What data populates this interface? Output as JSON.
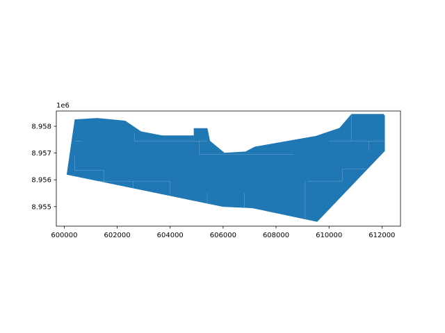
{
  "chart_data": {
    "type": "polygon",
    "title": "",
    "xlabel": "",
    "ylabel": "",
    "y_offset_label": "1e6",
    "xlim": [
      599700,
      612700
    ],
    "ylim": [
      8954270,
      8958570
    ],
    "fill_color": "#1f77b4",
    "edge_color": "#d8e6f3",
    "x_ticks": [
      {
        "value": 600000,
        "label": "600000"
      },
      {
        "value": 602000,
        "label": "602000"
      },
      {
        "value": 604000,
        "label": "604000"
      },
      {
        "value": 606000,
        "label": "606000"
      },
      {
        "value": 608000,
        "label": "608000"
      },
      {
        "value": 610000,
        "label": "610000"
      },
      {
        "value": 612000,
        "label": "612000"
      }
    ],
    "y_ticks": [
      {
        "value": 8955000,
        "label": "8.955"
      },
      {
        "value": 8956000,
        "label": "8.956"
      },
      {
        "value": 8957000,
        "label": "8.957"
      },
      {
        "value": 8958000,
        "label": "8.958"
      }
    ],
    "outline": [
      [
        600100,
        8956200
      ],
      [
        600400,
        8958250
      ],
      [
        601250,
        8958300
      ],
      [
        602300,
        8958200
      ],
      [
        602900,
        8957800
      ],
      [
        603700,
        8957650
      ],
      [
        604900,
        8957650
      ],
      [
        604900,
        8957920
      ],
      [
        605400,
        8957920
      ],
      [
        605500,
        8957450
      ],
      [
        606050,
        8957000
      ],
      [
        606850,
        8957050
      ],
      [
        607200,
        8957230
      ],
      [
        609500,
        8957630
      ],
      [
        610400,
        8957930
      ],
      [
        610850,
        8958450
      ],
      [
        612050,
        8958450
      ],
      [
        612100,
        8958400
      ],
      [
        612100,
        8957080
      ],
      [
        609550,
        8954440
      ],
      [
        607100,
        8954950
      ],
      [
        606000,
        8955000
      ]
    ],
    "internal_lines": [
      [
        [
          600400,
          8957450
        ],
        [
          600650,
          8957450
        ]
      ],
      [
        [
          600400,
          8956350
        ],
        [
          601500,
          8956350
        ]
      ],
      [
        [
          601500,
          8956350
        ],
        [
          601500,
          8955900
        ]
      ],
      [
        [
          602650,
          8957450
        ],
        [
          602650,
          8957750
        ]
      ],
      [
        [
          602650,
          8957450
        ],
        [
          604900,
          8957450
        ]
      ],
      [
        [
          604900,
          8957450
        ],
        [
          605400,
          8957450
        ]
      ],
      [
        [
          605100,
          8957450
        ],
        [
          605100,
          8956950
        ]
      ],
      [
        [
          605100,
          8956950
        ],
        [
          608650,
          8956950
        ]
      ],
      [
        [
          604000,
          8955950
        ],
        [
          604000,
          8955450
        ]
      ],
      [
        [
          601200,
          8955950
        ],
        [
          604000,
          8955950
        ]
      ],
      [
        [
          610000,
          8957450
        ],
        [
          611200,
          8957450
        ]
      ],
      [
        [
          610850,
          8957450
        ],
        [
          610850,
          8958450
        ]
      ],
      [
        [
          611200,
          8957450
        ],
        [
          612100,
          8957450
        ]
      ],
      [
        [
          611500,
          8957450
        ],
        [
          611500,
          8957080
        ]
      ],
      [
        [
          610500,
          8956400
        ],
        [
          611400,
          8956400
        ]
      ],
      [
        [
          609200,
          8955950
        ],
        [
          610500,
          8955950
        ]
      ],
      [
        [
          610500,
          8956400
        ],
        [
          610500,
          8955950
        ]
      ],
      [
        [
          609100,
          8955950
        ],
        [
          609100,
          8954550
        ]
      ],
      [
        [
          606800,
          8955500
        ],
        [
          606800,
          8954950
        ]
      ],
      [
        [
          605400,
          8955500
        ],
        [
          605400,
          8955080
        ]
      ],
      [
        [
          602600,
          8955950
        ],
        [
          602600,
          8955700
        ]
      ],
      [
        [
          600400,
          8956900
        ],
        [
          600400,
          8956350
        ]
      ]
    ]
  }
}
